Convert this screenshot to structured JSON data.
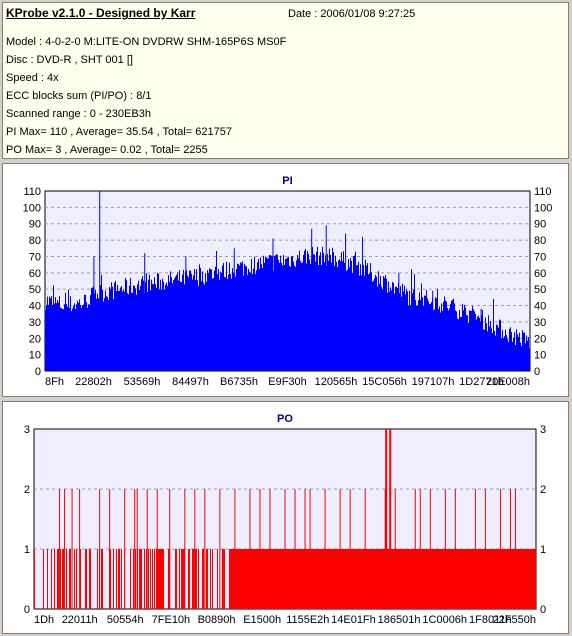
{
  "info": {
    "title": "KProbe v2.1.0 - Designed by Karr",
    "date": "Date : 2006/01/08 9:27:25",
    "model": "Model : 4-0-2-0 M:LITE-ON DVDRW SHM-165P6S MS0F",
    "disc": "Disc : DVD-R , SHT 001 []",
    "speed": "Speed : 4x",
    "ecc": "ECC blocks sum (PI/PO) : 8/1",
    "range": "Scanned range : 0 - 230EB3h",
    "pi_stats": "PI Max= 110 , Average= 35.54 , Total= 621757",
    "po_stats": "PO Max= 3 , Average= 0.02 , Total= 2255"
  },
  "chart_data": [
    {
      "type": "bar",
      "title": "PI",
      "ylim": [
        0,
        110
      ],
      "yticks": [
        "0",
        "10",
        "20",
        "30",
        "40",
        "50",
        "60",
        "70",
        "80",
        "90",
        "100",
        "110"
      ],
      "xticks": [
        "8Fh",
        "22802h",
        "53569h",
        "84497h",
        "B6735h",
        "E9F30h",
        "120565h",
        "15C056h",
        "197107h",
        "1D2771h",
        "20E008h"
      ],
      "color": "#0000ff",
      "profile": [
        [
          0,
          43
        ],
        [
          0.04,
          40
        ],
        [
          0.08,
          42
        ],
        [
          0.1,
          47
        ],
        [
          0.15,
          50
        ],
        [
          0.2,
          53
        ],
        [
          0.25,
          55
        ],
        [
          0.3,
          57
        ],
        [
          0.35,
          60
        ],
        [
          0.4,
          63
        ],
        [
          0.45,
          66
        ],
        [
          0.5,
          68
        ],
        [
          0.55,
          71
        ],
        [
          0.6,
          69
        ],
        [
          0.65,
          64
        ],
        [
          0.7,
          55
        ],
        [
          0.75,
          46
        ],
        [
          0.8,
          43
        ],
        [
          0.85,
          38
        ],
        [
          0.9,
          32
        ],
        [
          0.95,
          24
        ],
        [
          1,
          18
        ]
      ],
      "peaks": [
        [
          0.112,
          110
        ],
        [
          0.1,
          70
        ],
        [
          0.205,
          72
        ],
        [
          0.29,
          70
        ],
        [
          0.39,
          75
        ],
        [
          0.47,
          81
        ],
        [
          0.55,
          87
        ],
        [
          0.58,
          89
        ],
        [
          0.62,
          84
        ],
        [
          0.655,
          82
        ],
        [
          0.73,
          60
        ],
        [
          0.8,
          49
        ],
        [
          0.9,
          38
        ]
      ]
    },
    {
      "type": "bar",
      "title": "PO",
      "ylim": [
        0,
        3
      ],
      "yticks": [
        "0",
        "1",
        "2",
        "3"
      ],
      "xticks": [
        "1Dh",
        "22011h",
        "50554h",
        "7FE10h",
        "B0890h",
        "E1500h",
        "1155E2h",
        "14E01Fh",
        "186501h",
        "1C0006h",
        "1F8011h",
        "22F550h"
      ],
      "color": "#ff0000",
      "dense_from": 0.39,
      "twos": [
        0.05,
        0.06,
        0.075,
        0.09,
        0.13,
        0.15,
        0.18,
        0.2,
        0.205,
        0.225,
        0.245,
        0.27,
        0.3,
        0.32,
        0.34,
        0.37,
        0.4,
        0.43,
        0.45,
        0.47,
        0.5,
        0.52,
        0.54,
        0.55,
        0.58,
        0.61,
        0.63,
        0.66,
        0.7,
        0.72,
        0.76,
        0.77,
        0.79,
        0.82,
        0.84,
        0.88,
        0.9,
        0.93,
        0.95,
        0.96
      ],
      "threes": [
        0.701,
        0.709
      ]
    }
  ]
}
